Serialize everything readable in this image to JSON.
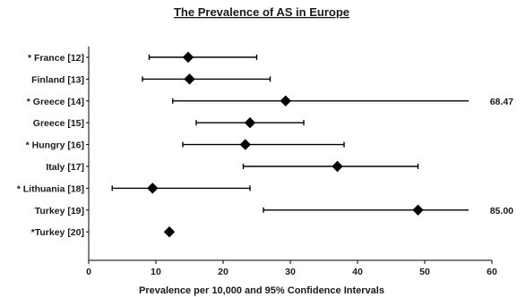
{
  "chart_data": {
    "type": "scatter",
    "title": "The Prevalence of AS in Europe",
    "xlabel": "Prevalence per 10,000 and 95% Confidence Intervals",
    "ylabel": "",
    "xlim": [
      0,
      60
    ],
    "xticks": [
      0,
      10,
      20,
      30,
      40,
      50,
      60
    ],
    "grid": false,
    "marker": "diamond",
    "color": "#000000",
    "rows": [
      {
        "label": "* France [12]",
        "estimate": 14.8,
        "ci_low": 9.0,
        "ci_high": 25.0,
        "annotation": ""
      },
      {
        "label": "Finland [13]",
        "estimate": 15.0,
        "ci_low": 8.0,
        "ci_high": 27.0,
        "annotation": ""
      },
      {
        "label": "* Greece [14]",
        "estimate": 29.3,
        "ci_low": 12.5,
        "ci_high": 68.47,
        "annotation": "68.47"
      },
      {
        "label": "Greece [15]",
        "estimate": 24.0,
        "ci_low": 16.0,
        "ci_high": 32.0,
        "annotation": ""
      },
      {
        "label": "* Hungry [16]",
        "estimate": 23.3,
        "ci_low": 14.0,
        "ci_high": 38.0,
        "annotation": ""
      },
      {
        "label": "Italy [17]",
        "estimate": 37.0,
        "ci_low": 23.0,
        "ci_high": 49.0,
        "annotation": ""
      },
      {
        "label": "* Lithuania [18]",
        "estimate": 9.5,
        "ci_low": 3.5,
        "ci_high": 24.0,
        "annotation": ""
      },
      {
        "label": "Turkey [19]",
        "estimate": 49.0,
        "ci_low": 26.0,
        "ci_high": 85.0,
        "annotation": "85.00"
      },
      {
        "label": "*Turkey [20]",
        "estimate": 12.0,
        "ci_low": null,
        "ci_high": null,
        "annotation": ""
      }
    ]
  }
}
